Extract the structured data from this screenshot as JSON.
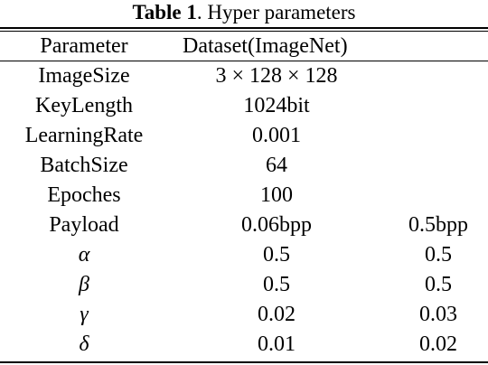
{
  "caption": {
    "bold": "Table 1",
    "rest": ". Hyper parameters"
  },
  "table": {
    "header": [
      "Parameter",
      "Dataset(ImageNet)",
      ""
    ],
    "rows": [
      [
        "ImageSize",
        "3 × 128 × 128",
        ""
      ],
      [
        "KeyLength",
        "1024bit",
        ""
      ],
      [
        "LearningRate",
        "0.001",
        ""
      ],
      [
        "BatchSize",
        "64",
        ""
      ],
      [
        "Epoches",
        "100",
        ""
      ],
      [
        "Payload",
        "0.06bpp",
        "0.5bpp"
      ],
      [
        "α",
        "0.5",
        "0.5"
      ],
      [
        "β",
        "0.5",
        "0.5"
      ],
      [
        "γ",
        "0.02",
        "0.03"
      ],
      [
        "δ",
        "0.01",
        "0.02"
      ]
    ]
  }
}
